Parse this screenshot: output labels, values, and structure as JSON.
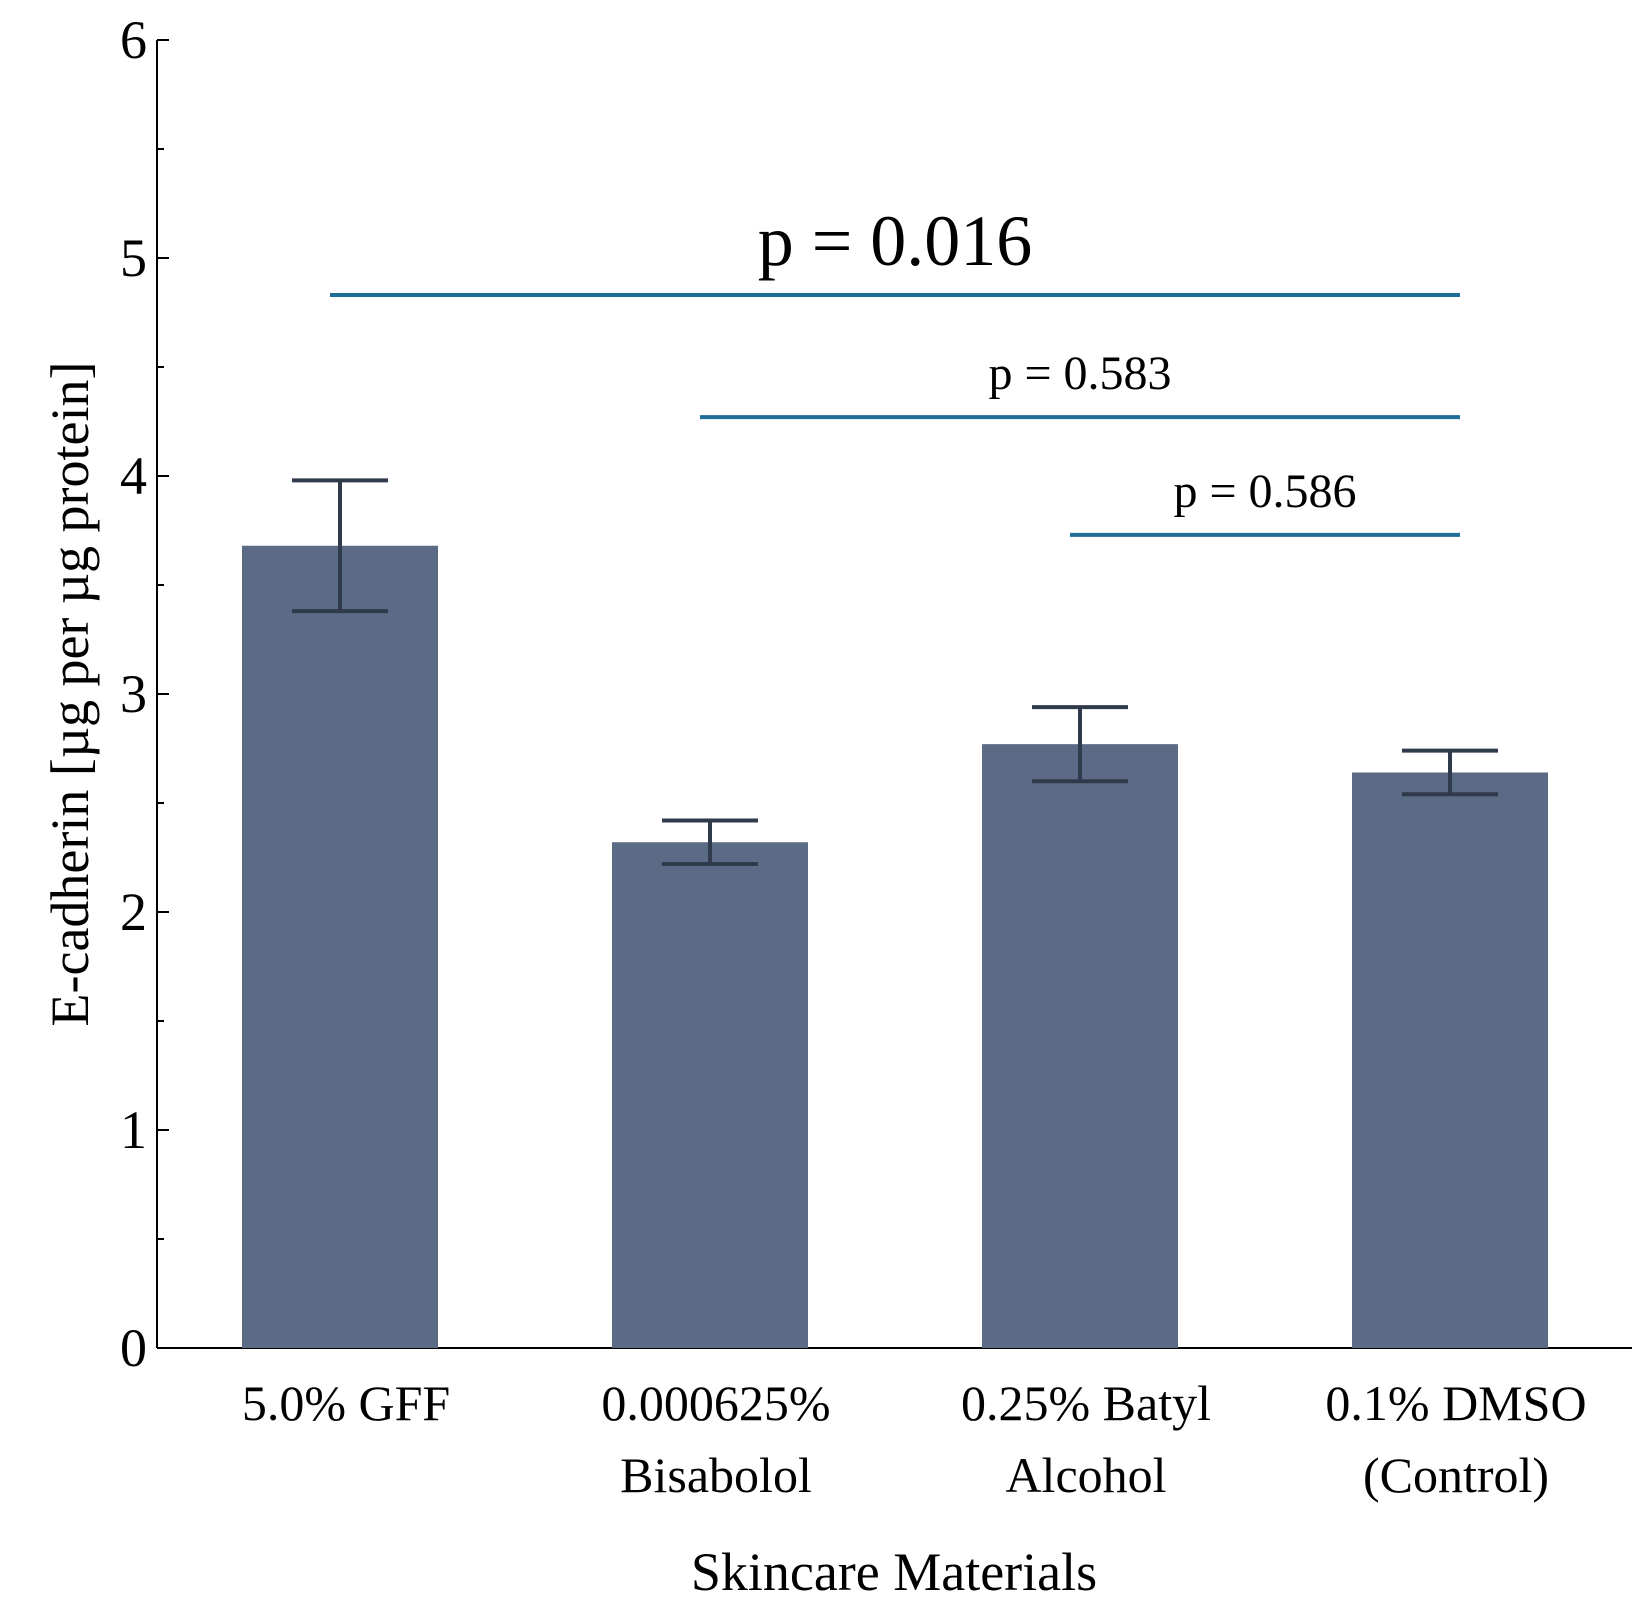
{
  "chart_data": {
    "type": "bar",
    "title": "",
    "xlabel": "Skincare Materials",
    "ylabel": "E-cadherin [µg per µg protein]",
    "ylim": [
      0,
      6
    ],
    "yticks": [
      0,
      1,
      2,
      3,
      4,
      5,
      6
    ],
    "grid": false,
    "categories": [
      [
        "5.0% GFF"
      ],
      [
        "0.000625%",
        "Bisabolol"
      ],
      [
        "0.25% Batyl",
        "Alcohol"
      ],
      [
        "0.1% DMSO",
        "(Control)"
      ]
    ],
    "values": [
      3.68,
      2.32,
      2.77,
      2.64
    ],
    "errors": [
      0.3,
      0.1,
      0.17,
      0.1
    ],
    "colors": {
      "bar": "#5b6b85",
      "errorbar": "#2f3a4a",
      "bracket": "#1f6d99",
      "axis": "#000000"
    },
    "comparisons": [
      {
        "from": 0,
        "to": 3,
        "y": 4.83,
        "label": "p = 0.016",
        "size": "large"
      },
      {
        "from": 1,
        "to": 3,
        "y": 4.27,
        "label": "p = 0.583",
        "size": "small"
      },
      {
        "from": 2,
        "to": 3,
        "y": 3.73,
        "label": "p = 0.586",
        "size": "small"
      }
    ]
  }
}
